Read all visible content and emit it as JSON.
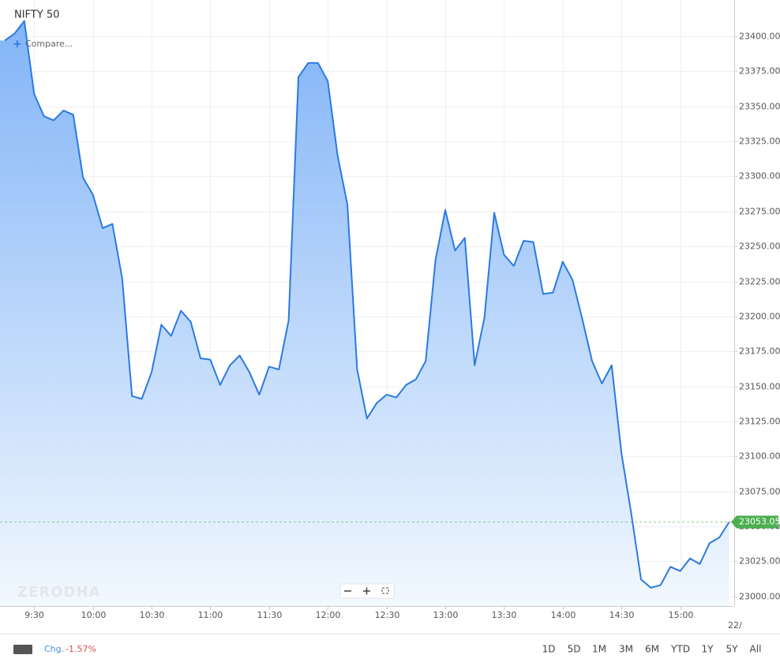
{
  "chart_data": {
    "type": "area",
    "title": "NIFTY 50",
    "compare_label": "Compare...",
    "watermark": "ZERODHA",
    "color": "#2a7ae2",
    "categories": [
      null,
      null,
      null,
      "9:30",
      null,
      null,
      null,
      null,
      null,
      "10:00",
      null,
      null,
      null,
      null,
      null,
      "10:30",
      null,
      null,
      null,
      null,
      null,
      "11:00",
      null,
      null,
      null,
      null,
      null,
      "11:30",
      null,
      null,
      null,
      null,
      null,
      "12:00",
      null,
      null,
      null,
      null,
      null,
      "12:30",
      null,
      null,
      null,
      null,
      null,
      "13:00",
      null,
      null,
      null,
      null,
      null,
      "13:30",
      null,
      null,
      null,
      null,
      null,
      "14:00",
      null,
      null,
      null,
      null,
      null,
      "14:30",
      null,
      null,
      null,
      null,
      null,
      "15:00",
      null,
      null,
      null,
      null,
      null
    ],
    "values": [
      23397,
      23402,
      23411,
      23359,
      23343,
      23340,
      23347,
      23344,
      23299,
      23287,
      23263,
      23266,
      23227,
      23143,
      23141,
      23160,
      23194,
      23186,
      23204,
      23196,
      23170,
      23169,
      23151,
      23165,
      23172,
      23160,
      23144,
      23164,
      23162,
      23197,
      23371,
      23381,
      23381,
      23368,
      23315,
      23280,
      23162,
      23127,
      23138,
      23144,
      23142,
      23151,
      23155,
      23168,
      23240,
      23276,
      23247,
      23256,
      23165,
      23199,
      23274,
      23244,
      23236,
      23254,
      23253,
      23216,
      23217,
      23239,
      23226,
      23198,
      23168,
      23152,
      23165,
      23102,
      23059,
      23012,
      23006,
      23008,
      23021,
      23018,
      23027,
      23023,
      23038,
      23042,
      23053.05
    ],
    "last_price": {
      "value": 23053.05,
      "label": "23053.05",
      "color": "#4caf50"
    },
    "next_day_label": "22/",
    "ylim": [
      22993,
      23426
    ],
    "yticks": [
      {
        "value": 23000,
        "label": "23000.00"
      },
      {
        "value": 23025,
        "label": "23025.00"
      },
      {
        "value": 23050,
        "label": "23050.00"
      },
      {
        "value": 23075,
        "label": "23075.00"
      },
      {
        "value": 23100,
        "label": "23100.00"
      },
      {
        "value": 23125,
        "label": "23125.00"
      },
      {
        "value": 23150,
        "label": "23150.00"
      },
      {
        "value": 23175,
        "label": "23175.00"
      },
      {
        "value": 23200,
        "label": "23200.00"
      },
      {
        "value": 23225,
        "label": "23225.00"
      },
      {
        "value": 23250,
        "label": "23250.00"
      },
      {
        "value": 23275,
        "label": "23275.00"
      },
      {
        "value": 23300,
        "label": "23300.00"
      },
      {
        "value": 23325,
        "label": "23325.00"
      },
      {
        "value": 23350,
        "label": "23350.00"
      },
      {
        "value": 23375,
        "label": "23375.00"
      },
      {
        "value": 23400,
        "label": "23400.00"
      }
    ],
    "grid": true
  },
  "footer": {
    "change_label": "Chg.",
    "change": "-1.57%",
    "ranges": [
      "1D",
      "5D",
      "1M",
      "3M",
      "6M",
      "YTD",
      "1Y",
      "5Y",
      "All"
    ]
  }
}
